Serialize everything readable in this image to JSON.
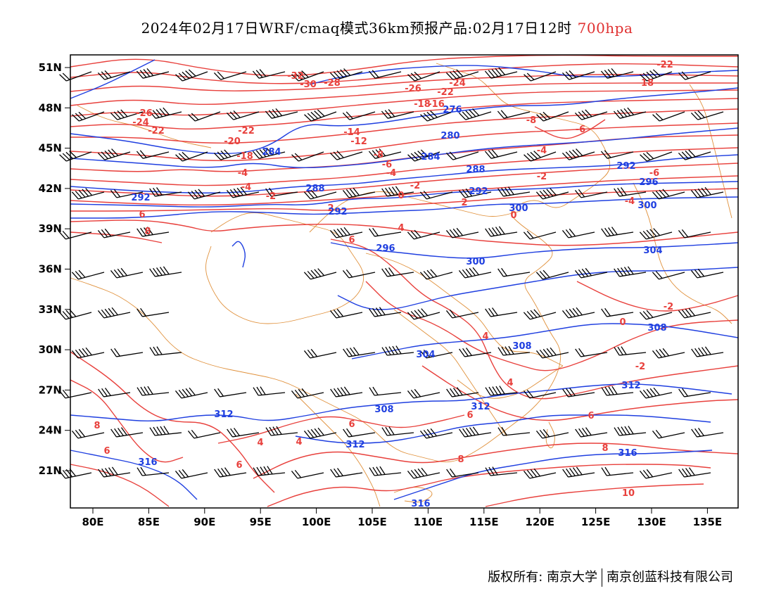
{
  "title": {
    "main": "2024年02月17日WRF/cmaq模式36km预报产品:02月17日12时",
    "level": "700hpa"
  },
  "map": {
    "lon_ticks": [
      "80E",
      "85E",
      "90E",
      "95E",
      "100E",
      "105E",
      "110E",
      "115E",
      "120E",
      "125E",
      "130E",
      "135E"
    ],
    "lat_ticks": [
      "51N",
      "48N",
      "45N",
      "42N",
      "39N",
      "36N",
      "33N",
      "30N",
      "27N",
      "24N",
      "21N"
    ],
    "temperature_labels": [
      "-32",
      "-30",
      "-28",
      "-26",
      "-24",
      "-22",
      "-20",
      "-18",
      "-16",
      "-14",
      "-12",
      "-10",
      "-8",
      "-6",
      "-4",
      "-2",
      "0",
      "2",
      "4",
      "6",
      "8",
      "10"
    ],
    "height_labels": [
      "276",
      "280",
      "284",
      "288",
      "292",
      "296",
      "300",
      "304",
      "308",
      "312",
      "316"
    ],
    "colors": {
      "temperature": "#e8403c",
      "height": "#1f3fe0",
      "boundary": "#e0913c",
      "barb": "#000000"
    }
  },
  "copyright": {
    "left": "版权所有: 南京大学",
    "right": "南京创蓝科技有限公司"
  }
}
